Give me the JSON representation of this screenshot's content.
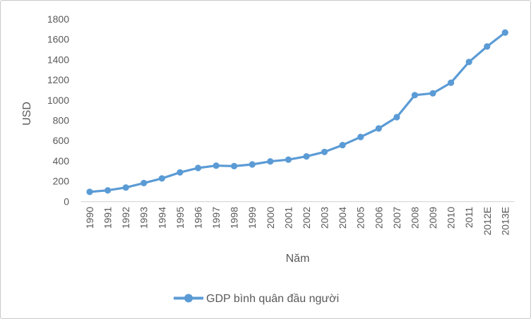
{
  "chart_data": {
    "type": "line",
    "title": "",
    "xlabel": "Năm",
    "ylabel": "USD",
    "ylim": [
      0,
      1800
    ],
    "ytick_step": 200,
    "grid": false,
    "legend_position": "bottom-center",
    "categories": [
      "1990",
      "1991",
      "1992",
      "1993",
      "1994",
      "1995",
      "1996",
      "1997",
      "1998",
      "1999",
      "2000",
      "2001",
      "2002",
      "2003",
      "2004",
      "2005",
      "2006",
      "2007",
      "2008",
      "2009",
      "2010",
      "2011",
      "2012E",
      "2013E"
    ],
    "series": [
      {
        "name": "GDP bình quân đầu người",
        "color": "#5B9BD5",
        "marker": "circle",
        "values": [
          95,
          110,
          138,
          182,
          228,
          287,
          331,
          354,
          349,
          366,
          396,
          413,
          445,
          489,
          557,
          637,
          721,
          833,
          1050,
          1068,
          1173,
          1378,
          1530,
          1668
        ]
      }
    ]
  },
  "colors": {
    "accent": "#5B9BD5",
    "text": "#595959",
    "axis_line": "#D6D6D6",
    "frame_border": "#C8C8C8",
    "background": "#FFFFFF"
  }
}
